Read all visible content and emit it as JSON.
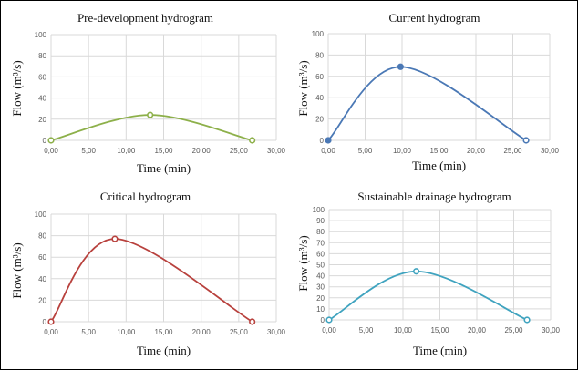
{
  "chart_data": [
    {
      "type": "line",
      "title": "Pre-development hydrogram",
      "xlabel": "Time (min)",
      "ylabel": "Flow (m³/s)",
      "xlim": [
        0,
        30
      ],
      "ylim": [
        0,
        100
      ],
      "xticks": [
        "0,00",
        "5,00",
        "10,00",
        "15,00",
        "20,00",
        "25,00",
        "30,00"
      ],
      "xtick_values": [
        0,
        5,
        10,
        15,
        20,
        25,
        30
      ],
      "yticks": [
        "0",
        "20",
        "40",
        "60",
        "80",
        "100"
      ],
      "ytick_values": [
        0,
        20,
        40,
        60,
        80,
        100
      ],
      "grid": true,
      "smooth": true,
      "color": "#8db04a",
      "series": [
        {
          "name": "Pre-development",
          "x": [
            0,
            13.2,
            26.8
          ],
          "y": [
            0,
            24,
            0
          ]
        }
      ]
    },
    {
      "type": "line",
      "title": "Current hydrogram",
      "xlabel": "Time (min)",
      "ylabel": "Flow (m³/s)",
      "xlim": [
        0,
        30
      ],
      "ylim": [
        0,
        100
      ],
      "xticks": [
        "0,00",
        "5,00",
        "10,00",
        "15,00",
        "20,00",
        "25,00",
        "30,00"
      ],
      "xtick_values": [
        0,
        5,
        10,
        15,
        20,
        25,
        30
      ],
      "yticks": [
        "0",
        "20",
        "40",
        "60",
        "80",
        "100"
      ],
      "ytick_values": [
        0,
        20,
        40,
        60,
        80,
        100
      ],
      "grid": true,
      "smooth": true,
      "color": "#4a78b5",
      "series": [
        {
          "name": "Current",
          "x": [
            0,
            9.8,
            26.8
          ],
          "y": [
            0,
            69,
            0
          ]
        }
      ]
    },
    {
      "type": "line",
      "title": "Critical hydrogram",
      "xlabel": "Time (min)",
      "ylabel": "Flow (m³/s)",
      "xlim": [
        0,
        30
      ],
      "ylim": [
        0,
        100
      ],
      "xticks": [
        "0,00",
        "5,00",
        "10,00",
        "15,00",
        "20,00",
        "25,00",
        "30,00"
      ],
      "xtick_values": [
        0,
        5,
        10,
        15,
        20,
        25,
        30
      ],
      "yticks": [
        "0",
        "20",
        "40",
        "60",
        "80",
        "100"
      ],
      "ytick_values": [
        0,
        20,
        40,
        60,
        80,
        100
      ],
      "grid": true,
      "smooth": true,
      "color": "#b8413d",
      "series": [
        {
          "name": "Critical",
          "x": [
            0,
            8.5,
            26.8
          ],
          "y": [
            0,
            77,
            0
          ]
        }
      ]
    },
    {
      "type": "line",
      "title": "Sustainable drainage hydrogram",
      "xlabel": "Time (min)",
      "ylabel": "Flow (m³/s)",
      "xlim": [
        0,
        30
      ],
      "ylim": [
        0,
        100
      ],
      "xticks": [
        "0,00",
        "5,00",
        "10,00",
        "15,00",
        "20,00",
        "25,00",
        "30,00"
      ],
      "xtick_values": [
        0,
        5,
        10,
        15,
        20,
        25,
        30
      ],
      "yticks": [
        "0",
        "10",
        "20",
        "30",
        "40",
        "50",
        "60",
        "70",
        "80",
        "90",
        "100"
      ],
      "ytick_values": [
        0,
        10,
        20,
        30,
        40,
        50,
        60,
        70,
        80,
        90,
        100
      ],
      "grid": true,
      "smooth": true,
      "color": "#3fa3bf",
      "series": [
        {
          "name": "Sustainable drainage",
          "x": [
            0,
            11.8,
            26.8
          ],
          "y": [
            0,
            44,
            0
          ]
        }
      ]
    }
  ]
}
